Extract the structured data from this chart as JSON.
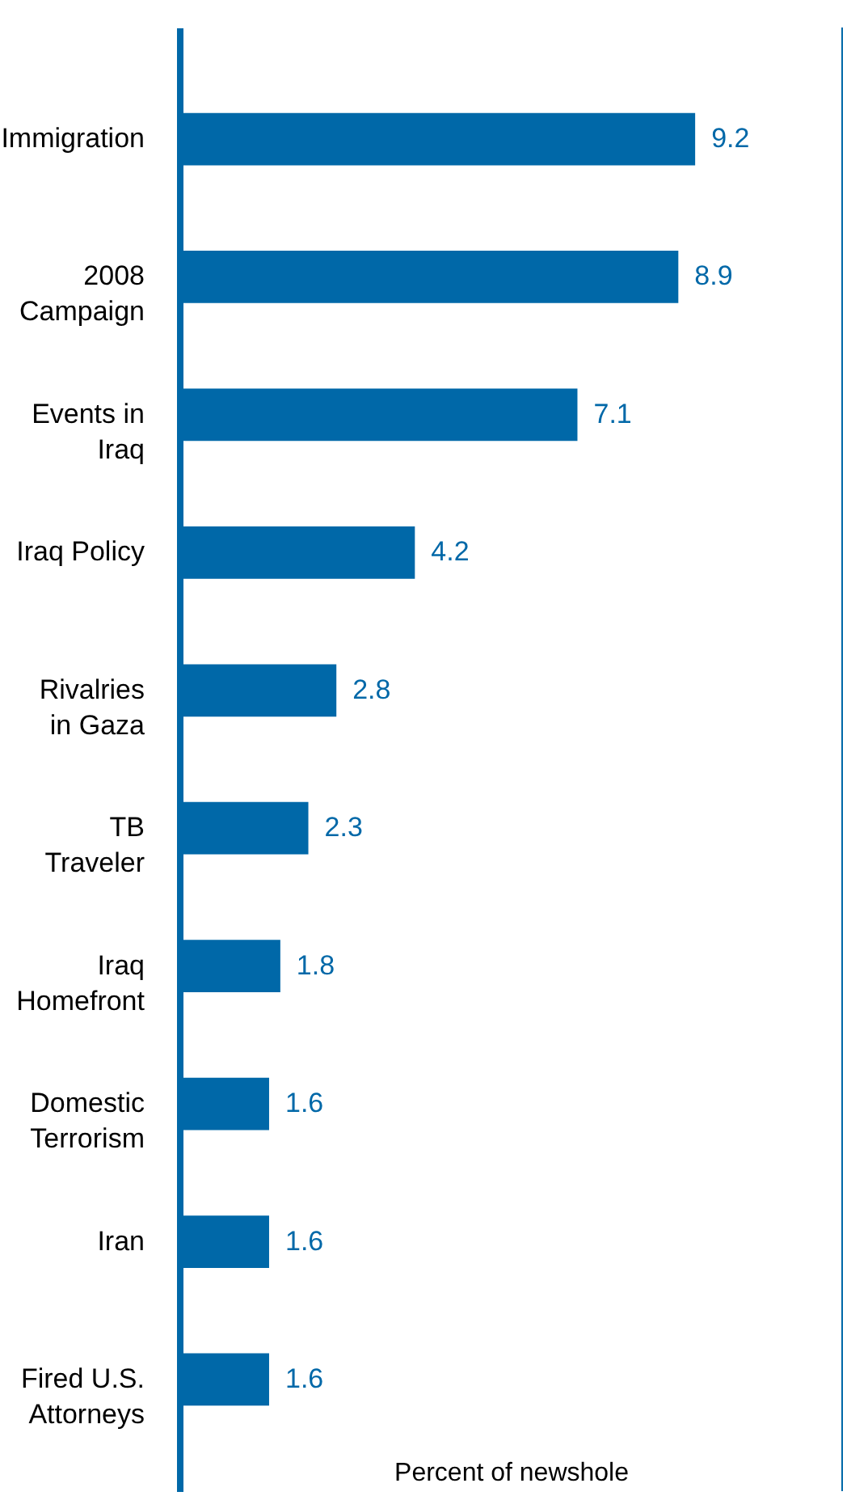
{
  "chart_data": {
    "type": "bar",
    "orientation": "horizontal",
    "xlabel": "Percent of newshole",
    "categories": [
      "Immigration",
      "2008\nCampaign",
      "Events in\nIraq",
      "Iraq Policy",
      "Rivalries\nin Gaza",
      "TB\nTraveler",
      "Iraq\nHomefront",
      "Domestic\nTerrorism",
      "Iran",
      "Fired U.S.\nAttorneys"
    ],
    "values": [
      9.2,
      8.9,
      7.1,
      4.2,
      2.8,
      2.3,
      1.8,
      1.6,
      1.6,
      1.6
    ],
    "color": "#0068a8",
    "data_labels": true,
    "grid": false
  }
}
